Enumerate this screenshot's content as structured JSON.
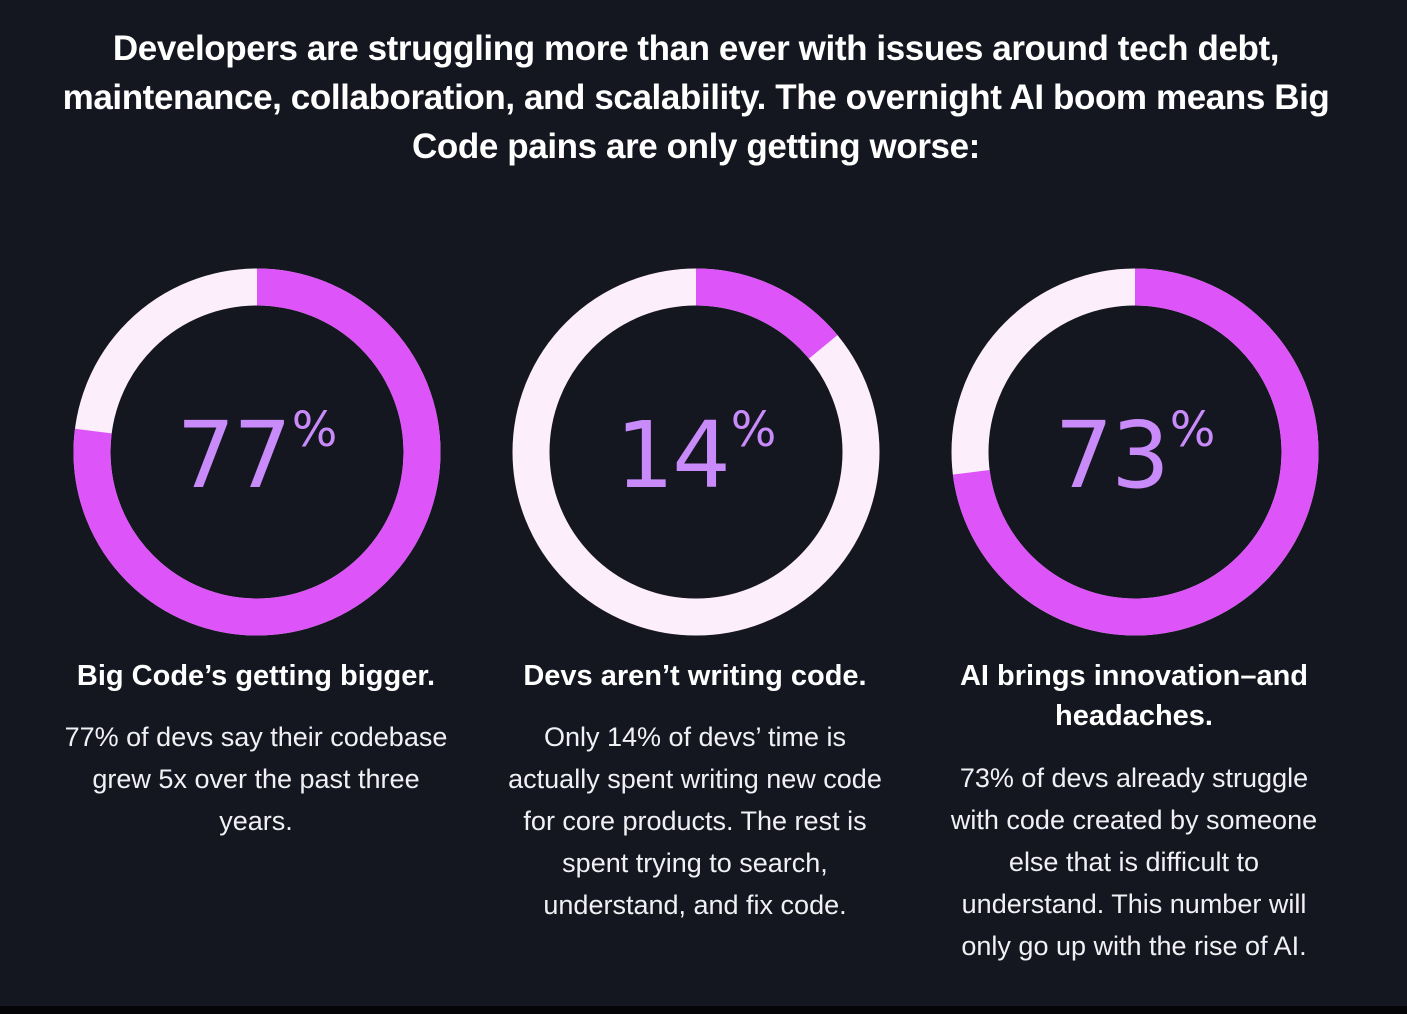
{
  "headline": "Developers are struggling more than ever with issues around tech debt, maintenance, collaboration, and scalability. The overnight AI boom means Big Code pains are only getting worse:",
  "colors": {
    "background": "#151720",
    "accent": "#dd54f8",
    "track": "#fdeefc",
    "number": "#c98bfa"
  },
  "chart_data": [
    {
      "type": "pie",
      "variant": "donut",
      "value": 77,
      "unit": "%",
      "max": 100,
      "title": "Big Code’s getting bigger.",
      "description": "77% of devs say their codebase grew 5x over the past three years."
    },
    {
      "type": "pie",
      "variant": "donut",
      "value": 14,
      "unit": "%",
      "max": 100,
      "title": "Devs aren’t writing code.",
      "description": "Only 14% of devs’ time is actually spent writing new code for core products. The rest is spent trying to search, understand, and fix code."
    },
    {
      "type": "pie",
      "variant": "donut",
      "value": 73,
      "unit": "%",
      "max": 100,
      "title": "AI brings innovation–and headaches.",
      "description": "73% of devs already struggle with code created by someone else that is difficult to understand. This number will only go up with the rise of AI."
    }
  ]
}
